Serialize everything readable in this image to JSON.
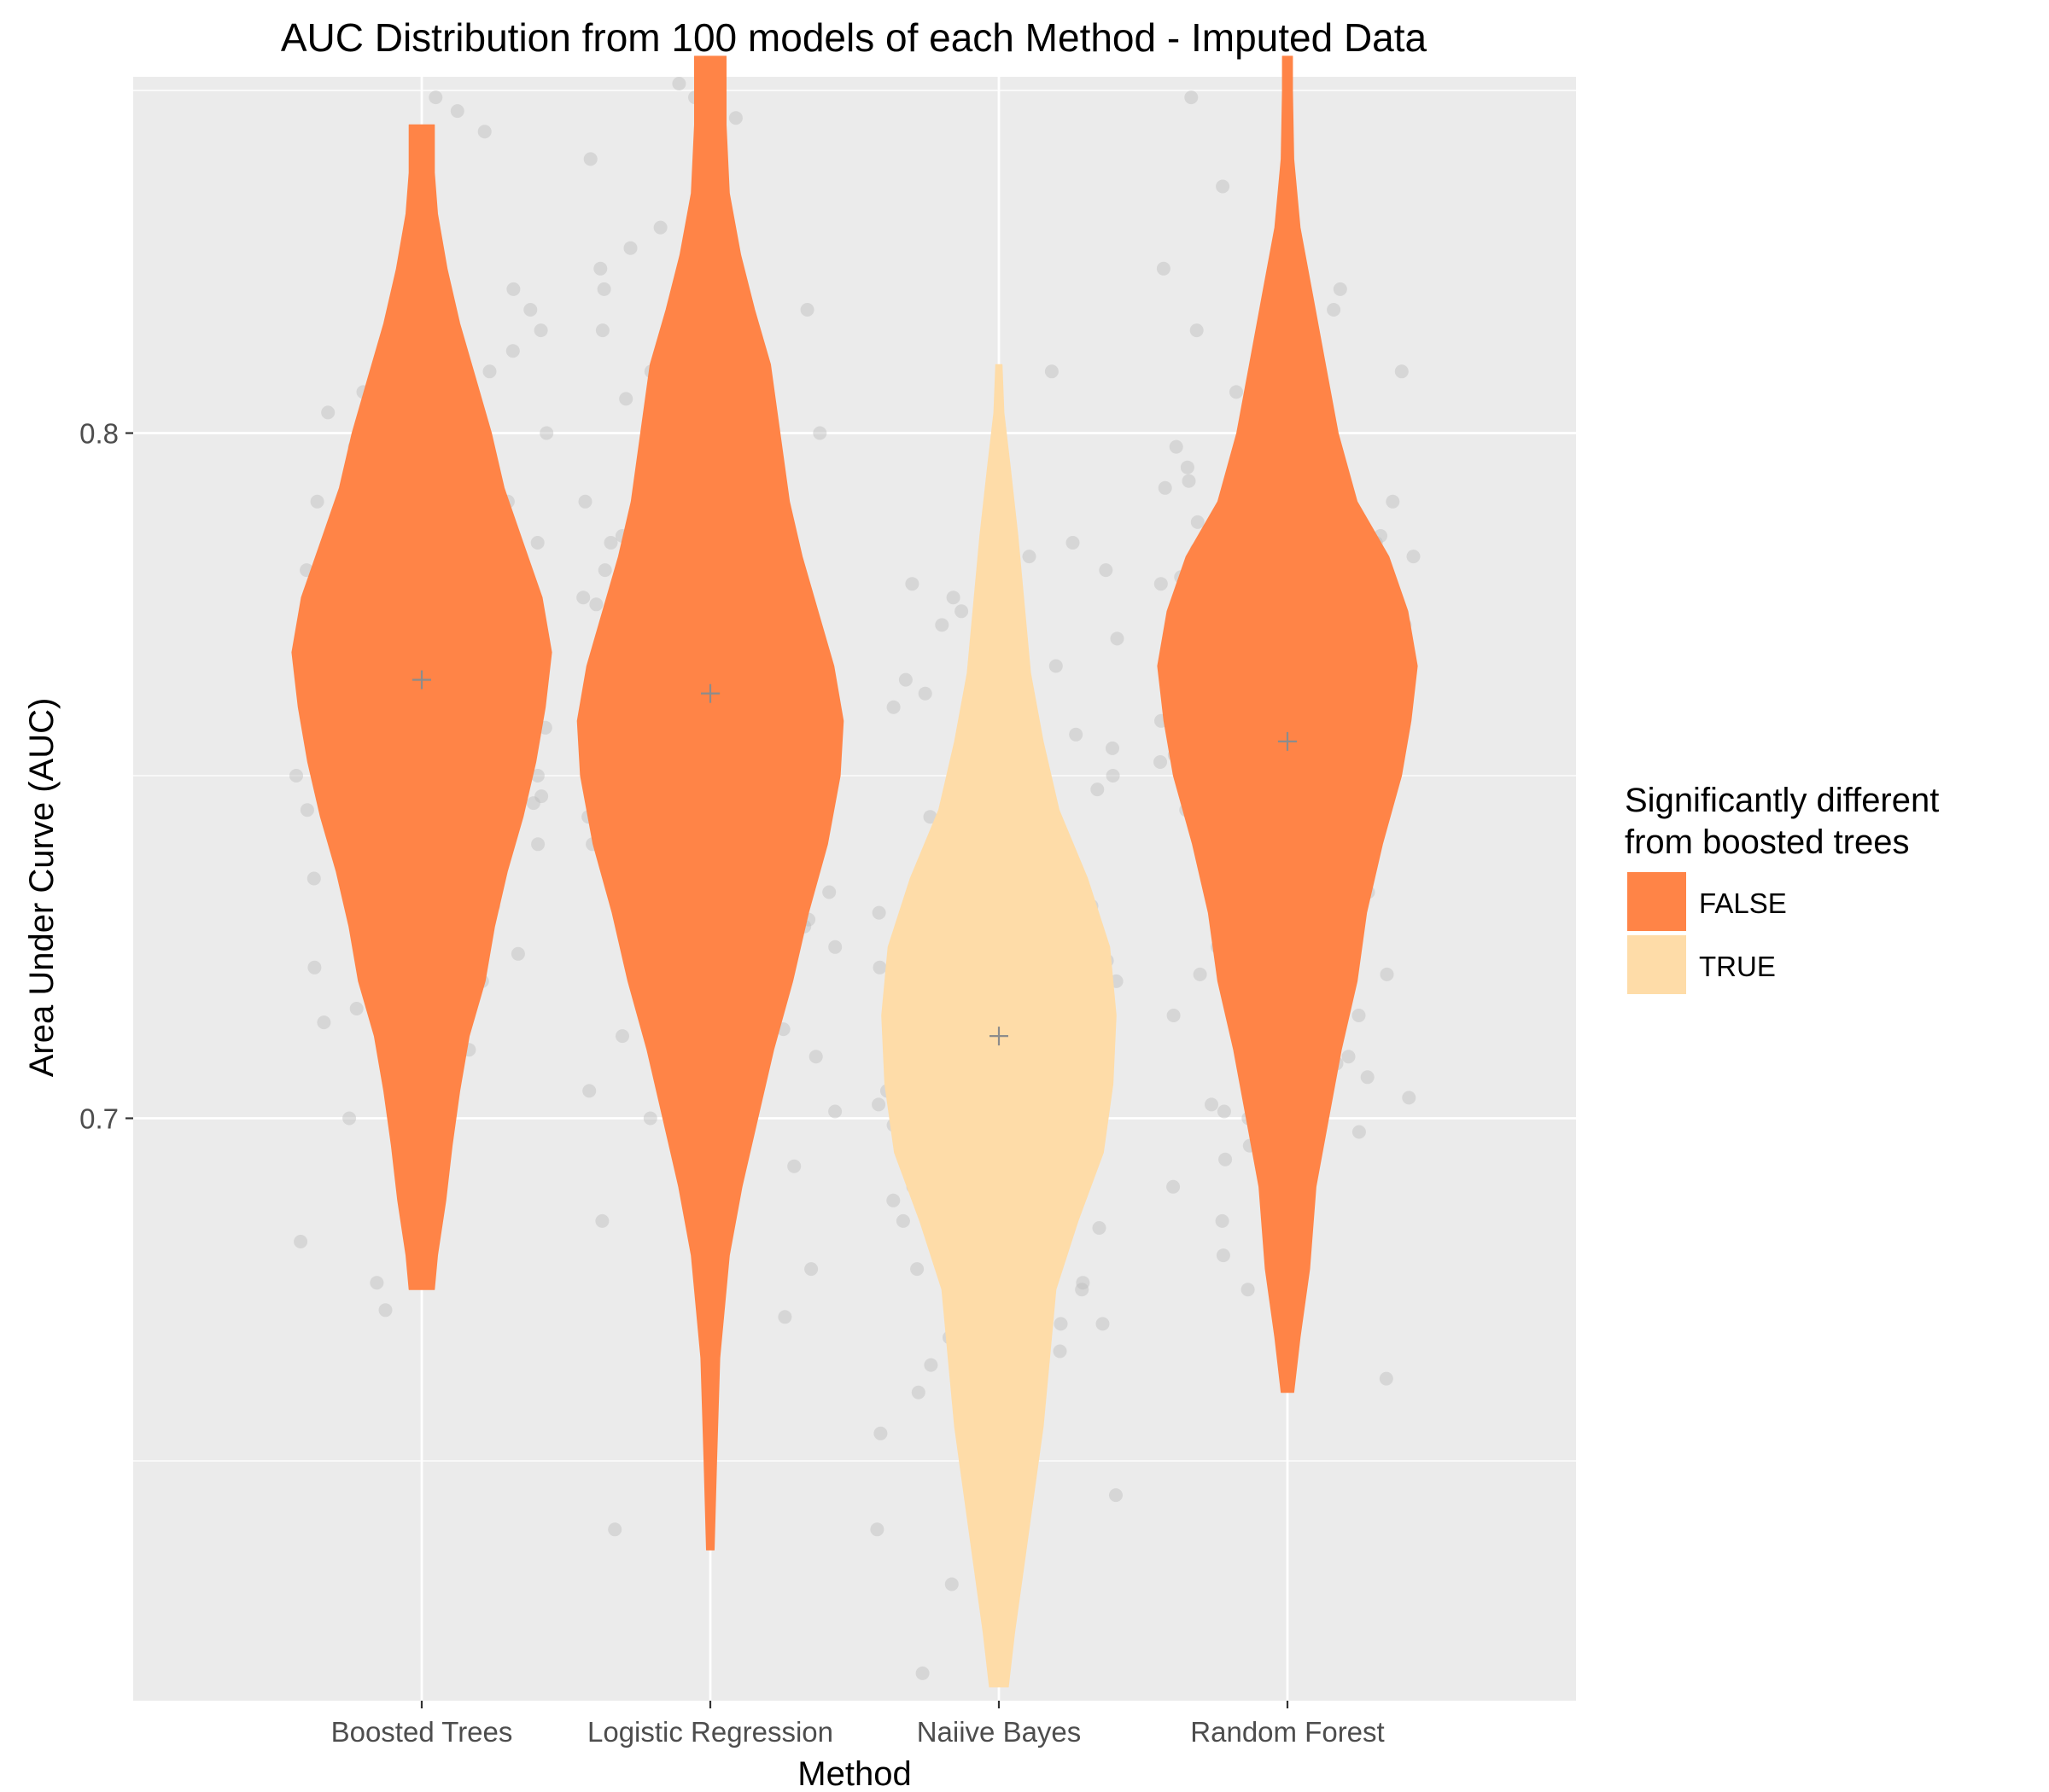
{
  "chart_data": {
    "type": "violin",
    "title": "AUC Distribution from 100 models of each Method - Imputed Data",
    "xlabel": "Method",
    "ylabel": "Area Under Curve (AUC)",
    "categories": [
      "Boosted Trees",
      "Logistic Regression",
      "Naiive Bayes",
      "Random Forest"
    ],
    "ylim": [
      0.615,
      0.852
    ],
    "yticks": [
      0.7,
      0.8
    ],
    "ytick_labels": [
      "0.7",
      "0.8"
    ],
    "grid": true,
    "legend": {
      "title_lines": [
        "Significantly different",
        "from boosted trees"
      ],
      "position": "right",
      "items": [
        {
          "label": "FALSE",
          "color": "#FF8447"
        },
        {
          "label": "TRUE",
          "color": "#FEDCA8"
        }
      ]
    },
    "colors": {
      "panel": "#EBEBEB",
      "grid_major": "#FFFFFF",
      "false_fill": "#FF8447",
      "true_fill": "#FEDCA8",
      "points": "#BDBDBD",
      "mean_marker": "#8C8C8C"
    },
    "violins": [
      {
        "category": "Boosted Trees",
        "significant": false,
        "mean": 0.764,
        "profile": [
          [
            0.675,
            0.02
          ],
          [
            0.68,
            0.025
          ],
          [
            0.688,
            0.038
          ],
          [
            0.696,
            0.048
          ],
          [
            0.704,
            0.06
          ],
          [
            0.712,
            0.075
          ],
          [
            0.72,
            0.1
          ],
          [
            0.728,
            0.115
          ],
          [
            0.736,
            0.135
          ],
          [
            0.744,
            0.16
          ],
          [
            0.752,
            0.18
          ],
          [
            0.76,
            0.195
          ],
          [
            0.768,
            0.205
          ],
          [
            0.776,
            0.19
          ],
          [
            0.784,
            0.16
          ],
          [
            0.792,
            0.13
          ],
          [
            0.8,
            0.11
          ],
          [
            0.808,
            0.085
          ],
          [
            0.816,
            0.06
          ],
          [
            0.824,
            0.04
          ],
          [
            0.832,
            0.025
          ],
          [
            0.838,
            0.02
          ],
          [
            0.845,
            0.02
          ]
        ]
      },
      {
        "category": "Logistic Regression",
        "significant": false,
        "mean": 0.762,
        "profile": [
          [
            0.637,
            0.006
          ],
          [
            0.65,
            0.01
          ],
          [
            0.665,
            0.015
          ],
          [
            0.68,
            0.03
          ],
          [
            0.69,
            0.05
          ],
          [
            0.7,
            0.075
          ],
          [
            0.71,
            0.1
          ],
          [
            0.72,
            0.13
          ],
          [
            0.73,
            0.155
          ],
          [
            0.74,
            0.185
          ],
          [
            0.75,
            0.205
          ],
          [
            0.758,
            0.21
          ],
          [
            0.766,
            0.195
          ],
          [
            0.774,
            0.17
          ],
          [
            0.782,
            0.145
          ],
          [
            0.79,
            0.125
          ],
          [
            0.8,
            0.11
          ],
          [
            0.81,
            0.095
          ],
          [
            0.818,
            0.07
          ],
          [
            0.826,
            0.048
          ],
          [
            0.835,
            0.03
          ],
          [
            0.845,
            0.025
          ],
          [
            0.855,
            0.025
          ]
        ]
      },
      {
        "category": "Naiive Bayes",
        "significant": true,
        "mean": 0.712,
        "profile": [
          [
            0.617,
            0.015
          ],
          [
            0.625,
            0.025
          ],
          [
            0.635,
            0.04
          ],
          [
            0.645,
            0.055
          ],
          [
            0.655,
            0.07
          ],
          [
            0.665,
            0.08
          ],
          [
            0.675,
            0.09
          ],
          [
            0.685,
            0.125
          ],
          [
            0.695,
            0.165
          ],
          [
            0.705,
            0.18
          ],
          [
            0.715,
            0.185
          ],
          [
            0.725,
            0.175
          ],
          [
            0.735,
            0.14
          ],
          [
            0.745,
            0.095
          ],
          [
            0.755,
            0.07
          ],
          [
            0.765,
            0.05
          ],
          [
            0.775,
            0.04
          ],
          [
            0.785,
            0.03
          ],
          [
            0.795,
            0.018
          ],
          [
            0.803,
            0.008
          ],
          [
            0.81,
            0.005
          ]
        ]
      },
      {
        "category": "Random Forest",
        "significant": false,
        "mean": 0.755,
        "profile": [
          [
            0.66,
            0.01
          ],
          [
            0.668,
            0.02
          ],
          [
            0.678,
            0.035
          ],
          [
            0.69,
            0.045
          ],
          [
            0.7,
            0.065
          ],
          [
            0.71,
            0.085
          ],
          [
            0.72,
            0.11
          ],
          [
            0.73,
            0.125
          ],
          [
            0.74,
            0.15
          ],
          [
            0.75,
            0.18
          ],
          [
            0.758,
            0.195
          ],
          [
            0.766,
            0.205
          ],
          [
            0.774,
            0.19
          ],
          [
            0.782,
            0.16
          ],
          [
            0.79,
            0.11
          ],
          [
            0.8,
            0.08
          ],
          [
            0.81,
            0.06
          ],
          [
            0.82,
            0.04
          ],
          [
            0.83,
            0.02
          ],
          [
            0.84,
            0.01
          ],
          [
            0.85,
            0.008
          ],
          [
            0.855,
            0.008
          ]
        ]
      }
    ],
    "points": [
      {
        "category": "Boosted Trees",
        "values": [
          0.699,
          0.712,
          0.714,
          0.716,
          0.718,
          0.72,
          0.722,
          0.724,
          0.726,
          0.728,
          0.73,
          0.731,
          0.733,
          0.735,
          0.737,
          0.739,
          0.74,
          0.741,
          0.742,
          0.743,
          0.744,
          0.745,
          0.746,
          0.747,
          0.748,
          0.749,
          0.75,
          0.751,
          0.752,
          0.753,
          0.754,
          0.755,
          0.756,
          0.757,
          0.758,
          0.759,
          0.76,
          0.761,
          0.762,
          0.763,
          0.764,
          0.765,
          0.766,
          0.767,
          0.768,
          0.769,
          0.77,
          0.771,
          0.772,
          0.773,
          0.774,
          0.775,
          0.776,
          0.777,
          0.778,
          0.779,
          0.78,
          0.781,
          0.782,
          0.783,
          0.784,
          0.785,
          0.786,
          0.787,
          0.788,
          0.79,
          0.792,
          0.794,
          0.796,
          0.798,
          0.8,
          0.803,
          0.806,
          0.809,
          0.812,
          0.815,
          0.818,
          0.821,
          0.844,
          0.847,
          0.849,
          0.682,
          0.676,
          0.672,
          0.7,
          0.705,
          0.71,
          0.72,
          0.73,
          0.74,
          0.75,
          0.76,
          0.77,
          0.78,
          0.79,
          0.8,
          0.745,
          0.755,
          0.765,
          0.775
        ]
      },
      {
        "category": "Logistic Regression",
        "values": [
          0.64,
          0.671,
          0.678,
          0.7,
          0.704,
          0.712,
          0.716,
          0.72,
          0.724,
          0.728,
          0.732,
          0.735,
          0.738,
          0.74,
          0.742,
          0.744,
          0.746,
          0.748,
          0.75,
          0.752,
          0.754,
          0.756,
          0.758,
          0.76,
          0.762,
          0.764,
          0.766,
          0.768,
          0.77,
          0.772,
          0.774,
          0.776,
          0.778,
          0.78,
          0.782,
          0.784,
          0.786,
          0.788,
          0.79,
          0.792,
          0.794,
          0.796,
          0.798,
          0.8,
          0.803,
          0.806,
          0.809,
          0.812,
          0.815,
          0.818,
          0.821,
          0.824,
          0.827,
          0.83,
          0.84,
          0.846,
          0.849,
          0.851,
          0.753,
          0.757,
          0.761,
          0.765,
          0.769,
          0.773,
          0.777,
          0.781,
          0.745,
          0.741,
          0.737,
          0.733,
          0.729,
          0.725,
          0.721,
          0.717,
          0.713,
          0.709,
          0.705,
          0.701,
          0.697,
          0.693,
          0.689,
          0.685,
          0.76,
          0.75,
          0.74,
          0.73,
          0.77,
          0.78,
          0.79,
          0.8,
          0.755,
          0.765,
          0.775,
          0.745,
          0.735,
          0.725,
          0.715,
          0.785,
          0.795,
          0.805
        ]
      },
      {
        "category": "Naiive Bayes",
        "values": [
          0.619,
          0.628,
          0.632,
          0.64,
          0.645,
          0.65,
          0.654,
          0.657,
          0.66,
          0.662,
          0.664,
          0.666,
          0.668,
          0.67,
          0.672,
          0.674,
          0.676,
          0.678,
          0.68,
          0.682,
          0.684,
          0.686,
          0.688,
          0.69,
          0.692,
          0.694,
          0.696,
          0.698,
          0.7,
          0.702,
          0.704,
          0.706,
          0.708,
          0.71,
          0.712,
          0.714,
          0.716,
          0.718,
          0.72,
          0.722,
          0.724,
          0.726,
          0.728,
          0.73,
          0.732,
          0.734,
          0.736,
          0.738,
          0.74,
          0.742,
          0.744,
          0.746,
          0.748,
          0.75,
          0.752,
          0.754,
          0.756,
          0.758,
          0.76,
          0.762,
          0.764,
          0.766,
          0.768,
          0.77,
          0.772,
          0.774,
          0.776,
          0.778,
          0.78,
          0.782,
          0.784,
          0.809,
          0.7,
          0.705,
          0.71,
          0.715,
          0.72,
          0.725,
          0.73,
          0.735,
          0.695,
          0.69,
          0.685,
          0.68,
          0.675,
          0.67,
          0.665,
          0.66,
          0.655,
          0.65,
          0.708,
          0.712,
          0.716,
          0.718,
          0.721,
          0.723,
          0.727,
          0.731,
          0.703,
          0.699
        ]
      },
      {
        "category": "Random Forest",
        "values": [
          0.662,
          0.675,
          0.68,
          0.685,
          0.69,
          0.696,
          0.7,
          0.703,
          0.706,
          0.709,
          0.712,
          0.715,
          0.718,
          0.721,
          0.724,
          0.727,
          0.73,
          0.733,
          0.736,
          0.739,
          0.742,
          0.745,
          0.748,
          0.75,
          0.752,
          0.754,
          0.756,
          0.758,
          0.76,
          0.762,
          0.764,
          0.766,
          0.768,
          0.77,
          0.772,
          0.774,
          0.776,
          0.778,
          0.78,
          0.782,
          0.784,
          0.786,
          0.788,
          0.79,
          0.792,
          0.794,
          0.796,
          0.798,
          0.8,
          0.803,
          0.806,
          0.809,
          0.812,
          0.815,
          0.818,
          0.821,
          0.824,
          0.836,
          0.849,
          0.751,
          0.753,
          0.757,
          0.761,
          0.763,
          0.767,
          0.771,
          0.773,
          0.777,
          0.779,
          0.783,
          0.787,
          0.789,
          0.793,
          0.797,
          0.745,
          0.741,
          0.737,
          0.733,
          0.729,
          0.725,
          0.721,
          0.717,
          0.713,
          0.709,
          0.705,
          0.701,
          0.698,
          0.694,
          0.765,
          0.755,
          0.775,
          0.785,
          0.795,
          0.805,
          0.735,
          0.725,
          0.715,
          0.708,
          0.702,
          0.744
        ]
      }
    ]
  }
}
